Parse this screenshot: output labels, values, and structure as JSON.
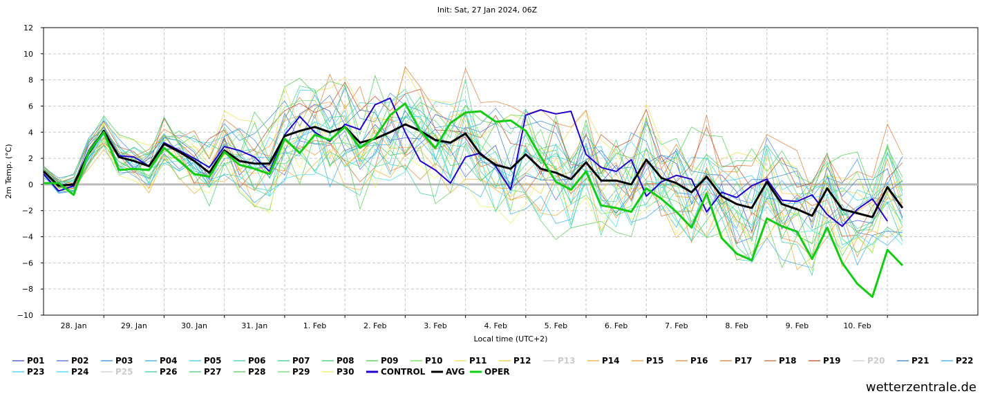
{
  "chart_data": {
    "type": "line",
    "title": "Init: Sat, 27 Jan 2024, 06Z",
    "ylabel": "2m Temp. (°C)",
    "xlabel": "Local time (UTC+2)",
    "ylim": [
      -10,
      12
    ],
    "yticks": [
      "12",
      "10",
      "8",
      "6",
      "4",
      "2",
      "0",
      "−2",
      "−4",
      "−6",
      "−8",
      "−10"
    ],
    "xlim": [
      0,
      62
    ],
    "x_tick_labels": [
      "28. Jan",
      "29. Jan",
      "30. Jan",
      "31. Jan",
      "1. Feb",
      "2. Feb",
      "3. Feb",
      "4. Feb",
      "5. Feb",
      "6. Feb",
      "7. Feb",
      "8. Feb",
      "9. Feb",
      "10. Feb"
    ],
    "x_tick_positions": [
      2,
      6,
      10,
      14,
      18,
      22,
      26,
      30,
      34,
      38,
      42,
      46,
      50,
      54
    ],
    "grid": true,
    "legend_position": "bottom",
    "x_step_hours": 6,
    "series": [
      {
        "name": "CONTROL",
        "color": "#2200cc",
        "values": [
          0.8,
          -0.5,
          -0.1,
          2.6,
          4.1,
          2.2,
          2.1,
          1.4,
          3.2,
          2.6,
          2.0,
          1.3,
          2.9,
          2.6,
          2.1,
          1.0,
          3.8,
          5.2,
          4.0,
          3.3,
          4.6,
          4.2,
          6.1,
          6.6,
          4.0,
          1.8,
          1.1,
          0.1,
          2.1,
          2.4,
          1.4,
          -0.4,
          5.3,
          5.7,
          5.4,
          5.6,
          2.3,
          1.3,
          1.0,
          1.9,
          -0.9,
          0.2,
          0.7,
          0.4,
          -2.1,
          -0.6,
          -1.0,
          -0.1,
          0.4,
          -1.2,
          -1.3,
          -0.8,
          -2.3,
          -3.2,
          -1.9,
          -1.1,
          -2.8
        ]
      },
      {
        "name": "AVG",
        "color": "#000000",
        "values": [
          1.0,
          -0.1,
          0.0,
          2.4,
          4.1,
          2.1,
          1.8,
          1.4,
          3.1,
          2.5,
          1.8,
          0.9,
          2.6,
          1.8,
          1.6,
          1.6,
          3.7,
          4.1,
          4.4,
          4.0,
          4.4,
          3.2,
          3.5,
          4.0,
          4.6,
          4.1,
          3.4,
          3.2,
          3.9,
          2.3,
          1.5,
          1.2,
          2.3,
          1.2,
          0.9,
          0.4,
          1.7,
          0.3,
          0.3,
          0.0,
          1.9,
          0.5,
          0.1,
          -0.6,
          0.6,
          -0.9,
          -1.5,
          -1.8,
          0.2,
          -1.5,
          -1.9,
          -2.4,
          -0.3,
          -1.9,
          -2.2,
          -2.5,
          -0.2,
          -1.8
        ]
      },
      {
        "name": "OPER",
        "color": "#11cc11",
        "values": [
          0.1,
          0.1,
          -0.8,
          2.5,
          4.0,
          1.1,
          1.2,
          1.1,
          2.8,
          1.8,
          0.8,
          0.6,
          2.5,
          1.5,
          1.2,
          0.8,
          3.5,
          2.4,
          3.8,
          3.4,
          4.4,
          2.8,
          3.6,
          5.3,
          6.2,
          4.1,
          2.8,
          4.7,
          5.5,
          5.6,
          4.8,
          4.9,
          4.1,
          2.1,
          0.2,
          -0.4,
          1.0,
          -1.6,
          -1.8,
          -2.1,
          -0.3,
          -1.1,
          -2.1,
          -3.3,
          -0.7,
          -4.1,
          -5.3,
          -5.8,
          -2.6,
          -3.2,
          -3.6,
          -5.7,
          -3.3,
          -6.0,
          -7.6,
          -8.6,
          -5.0,
          -6.2
        ]
      }
    ],
    "ensemble_members": [
      {
        "name": "P01",
        "color": "#3344cc"
      },
      {
        "name": "P02",
        "color": "#4a66dd"
      },
      {
        "name": "P03",
        "color": "#3388dd"
      },
      {
        "name": "P04",
        "color": "#33aadd"
      },
      {
        "name": "P05",
        "color": "#33ccdd"
      },
      {
        "name": "P06",
        "color": "#33ccaa"
      },
      {
        "name": "P07",
        "color": "#33cc88"
      },
      {
        "name": "P08",
        "color": "#33cc66"
      },
      {
        "name": "P09",
        "color": "#44cc44"
      },
      {
        "name": "P10",
        "color": "#66dd44"
      },
      {
        "name": "P11",
        "color": "#eedd44"
      },
      {
        "name": "P12",
        "color": "#eecc33"
      },
      {
        "name": "P13",
        "color": "#cccccc",
        "hidden": true
      },
      {
        "name": "P14",
        "color": "#eeaa33"
      },
      {
        "name": "P15",
        "color": "#ee9933"
      },
      {
        "name": "P16",
        "color": "#dd8833"
      },
      {
        "name": "P17",
        "color": "#dd7733"
      },
      {
        "name": "P18",
        "color": "#cc6633"
      },
      {
        "name": "P19",
        "color": "#bb4422"
      },
      {
        "name": "P20",
        "color": "#cccccc",
        "hidden": true
      },
      {
        "name": "P21",
        "color": "#3377cc"
      },
      {
        "name": "P22",
        "color": "#33aaee"
      },
      {
        "name": "P23",
        "color": "#33ccee"
      },
      {
        "name": "P24",
        "color": "#33ddee"
      },
      {
        "name": "P25",
        "color": "#cccccc",
        "hidden": true
      },
      {
        "name": "P26",
        "color": "#33cc99"
      },
      {
        "name": "P27",
        "color": "#44cc77"
      },
      {
        "name": "P28",
        "color": "#55cc55"
      },
      {
        "name": "P29",
        "color": "#66dd66"
      },
      {
        "name": "P30",
        "color": "#eeee55"
      },
      {
        "name": "CONTROL",
        "color": "#2200cc",
        "bold": true
      },
      {
        "name": "AVG",
        "color": "#000000",
        "bold": true
      },
      {
        "name": "OPER",
        "color": "#11cc11",
        "bold": true
      }
    ]
  },
  "watermark": "wetterzentrale.de"
}
